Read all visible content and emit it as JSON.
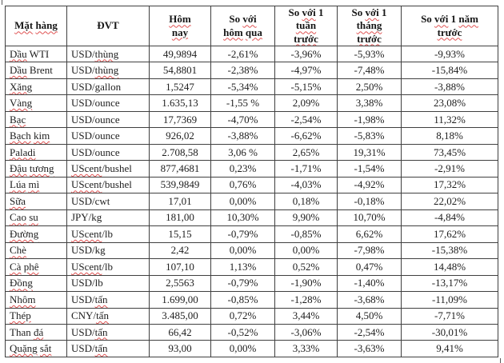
{
  "table": {
    "columns": [
      {
        "label": "Mặt hàng"
      },
      {
        "label": "ĐVT"
      },
      {
        "label": "Hôm\nnay"
      },
      {
        "label": "So với\nhôm qua"
      },
      {
        "label": "So với 1\ntuần\ntrước"
      },
      {
        "label": "So với 1\ntháng\ntrước"
      },
      {
        "label": "So với 1 năm\ntrước"
      }
    ],
    "rows": [
      {
        "cells": [
          "Dầu WTI",
          "USD/thùng",
          "49,9894",
          "-2,61%",
          "-3,96%",
          "-5,93%",
          "-9,93%"
        ]
      },
      {
        "cells": [
          "Dầu Brent",
          "USD/thùng",
          "54,8801",
          "-2,38%",
          "-4,97%",
          "-7,48%",
          "-15,84%"
        ]
      },
      {
        "cells": [
          "Xăng",
          "USD/gallon",
          "1,5247",
          "-5,34%",
          "-5,15%",
          "2,50%",
          "-3,88%"
        ]
      },
      {
        "cells": [
          "Vàng",
          "USD/ounce",
          "1.635,13",
          "-1,55 %",
          "2,09%",
          "3,38%",
          "23,08%"
        ]
      },
      {
        "cells": [
          "Bạc",
          "USD/ounce",
          "17,7369",
          "-4,70%",
          "-2,54%",
          "-1,98%",
          "11,32%"
        ]
      },
      {
        "cells": [
          "Bạch kim",
          "USD/ounce",
          "926,02",
          "-3,88%",
          "-6,62%",
          "-5,83%",
          "8,18%"
        ]
      },
      {
        "cells": [
          "Paladi",
          "USD/ounce",
          "2.708,58",
          "3,06 %",
          "2,65%",
          "19,31%",
          "73,45%"
        ]
      },
      {
        "cells": [
          "Đậu tương",
          "UScent/bushel",
          "877,4681",
          "0,23%",
          "-1,71%",
          "-1,54%",
          "-2,91%"
        ]
      },
      {
        "cells": [
          "Lúa mì",
          "UScent/bushel",
          "539,9849",
          "0,76%",
          "-4,03%",
          "-4,92%",
          "17,32%"
        ]
      },
      {
        "cells": [
          "Sữa",
          "USD/cwt",
          "17,01",
          "0,00%",
          "0,18%",
          "-0,18%",
          "22,02%"
        ]
      },
      {
        "cells": [
          "Cao su",
          "JPY/kg",
          "181,00",
          "10,30%",
          "9,90%",
          "10,70%",
          "-4,84%"
        ]
      },
      {
        "cells": [
          "Đường",
          "UScent/lb",
          "15,15",
          "-0,79%",
          "-0,85%",
          "6,62%",
          "17,62%"
        ]
      },
      {
        "cells": [
          "Chè",
          "USD/kg",
          "2,42",
          "0,00%",
          "0,00%",
          "-7,98%",
          "-15,38%"
        ]
      },
      {
        "cells": [
          "Cà phê",
          "UScent/lb",
          "107,10",
          "1,13%",
          "0,52%",
          "0,47%",
          "14,48%"
        ]
      },
      {
        "cells": [
          "Đồng",
          "USD/lb",
          "2,5563",
          "-0,79%",
          "-1,90%",
          "-1,40%",
          "-13,17%"
        ]
      },
      {
        "cells": [
          "Nhôm",
          "USD/tấn",
          "1.699,00",
          "-0,85%",
          "-1,28%",
          "-3,68%",
          "-11,09%"
        ]
      },
      {
        "cells": [
          "Thép",
          "CNY/tấn",
          "3.485,00",
          "0,72%",
          "3,44%",
          "4,50%",
          "-7,71%"
        ]
      },
      {
        "cells": [
          "Than đá",
          "USD/tấn",
          "66,42",
          "-0,52%",
          "-3,06%",
          "-2,54%",
          "-30,01%"
        ]
      },
      {
        "cells": [
          "Quặng sắt",
          "USD/tấn",
          "93,00",
          "0,00%",
          "3,33%",
          "-3,63%",
          "9,41%"
        ]
      }
    ]
  },
  "spellcheck_wavy_words": [
    "Mặt",
    "hàng",
    "Hôm",
    "nay",
    "với",
    "hôm",
    "qua",
    "tuần",
    "trước",
    "tháng",
    "năm",
    "Dầu",
    "Xăng",
    "Vàng",
    "Bạc",
    "Bạch",
    "kim",
    "Paladi",
    "Đậu",
    "tương",
    "Lúa",
    "mì",
    "Sữa",
    "Cao",
    "su",
    "Đường",
    "Chè",
    "Cà",
    "phê",
    "Đồng",
    "Nhôm",
    "Thép",
    "đá",
    "Quặng",
    "sắt",
    "thùng",
    "tấn",
    "UScent"
  ],
  "colors": {
    "border": "#404040",
    "text": "#1e1e1e",
    "squiggle": "#e05252",
    "background": "#ffffff"
  }
}
